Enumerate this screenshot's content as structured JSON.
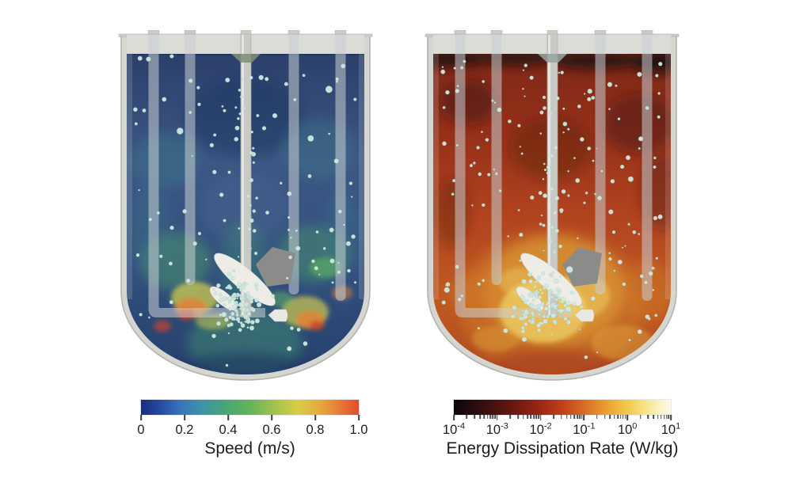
{
  "figure": {
    "background": "#ffffff",
    "tank_colors": {
      "wall": "#d6d6d1",
      "outline": "#b3b3ae",
      "rim": "#cbcbc6",
      "headspace": "#dcdcd7",
      "tube": "#c8cdd2",
      "shaft": "#c8cac6",
      "shaft_edge": "#a9aba7",
      "impeller_white": "#edece7",
      "impeller_gray": "#8b8b89",
      "sparger": "#eae8e2",
      "bubble": "#cfe9e2",
      "bubble_edge": "#84b5a8"
    },
    "panels": [
      {
        "name": "speed-panel",
        "field": "speed",
        "liquid_gradient": [
          "#2c3f6b",
          "#3d5784",
          "#33507e",
          "#24406b"
        ],
        "surface_dip": "#7f8e79",
        "surface_line": "#1d2b49",
        "blob_colors": {
          "teal": "#3a7a8a",
          "green": "#4a9a6a",
          "green2": "#3f8f74",
          "bright_green": "#62b862",
          "mid_blue": "#46648f",
          "deep": "#1b3260",
          "jet_yellow": "#d9d44c",
          "jet_orange": "#e08438",
          "jet_red": "#cc4328"
        }
      },
      {
        "name": "edr-panel",
        "field": "energy_dissipation_rate",
        "liquid_gradient": [
          "#7e2818",
          "#963019",
          "#b2431f",
          "#c05a22",
          "#ae4a1e"
        ],
        "surface_dip": "#97a3a1",
        "surface_line": "",
        "blob_colors": {
          "surface_dark": "#170b09",
          "maroon": "#431410",
          "glow_orange": "#d07c2a",
          "glow_yellow": "#e2a83a",
          "glow_bright": "#efd46a",
          "dome_red": "#a63b1d"
        }
      }
    ]
  },
  "chart_data": [
    {
      "type": "heatmap",
      "title": "Speed (m/s)",
      "scale": "linear",
      "unit": "m/s",
      "range": [
        0,
        1.0
      ],
      "ticks": [
        {
          "pos": 0,
          "label": "0"
        },
        {
          "pos": 0.2,
          "label": "0.2"
        },
        {
          "pos": 0.4,
          "label": "0.4"
        },
        {
          "pos": 0.6,
          "label": "0.6"
        },
        {
          "pos": 0.8,
          "label": "0.8"
        },
        {
          "pos": 1,
          "label": "1.0"
        }
      ],
      "colormap": [
        [
          0,
          "#1a2e7e"
        ],
        [
          0.08,
          "#24479f"
        ],
        [
          0.18,
          "#3a73ba"
        ],
        [
          0.28,
          "#3f93a8"
        ],
        [
          0.38,
          "#46a578"
        ],
        [
          0.5,
          "#65b25a"
        ],
        [
          0.62,
          "#a5c44d"
        ],
        [
          0.72,
          "#d7cd47"
        ],
        [
          0.82,
          "#e7a93d"
        ],
        [
          0.91,
          "#e87b37"
        ],
        [
          1,
          "#e04b2f"
        ]
      ]
    },
    {
      "type": "heatmap",
      "title": "Energy Dissipation Rate (W/kg)",
      "scale": "log10",
      "unit": "W/kg",
      "range": [
        0.0001,
        10
      ],
      "ticks": [
        {
          "pos": 0,
          "base": "10",
          "exp": "-4"
        },
        {
          "pos": 0.2,
          "base": "10",
          "exp": "-3"
        },
        {
          "pos": 0.4,
          "base": "10",
          "exp": "-2"
        },
        {
          "pos": 0.6,
          "base": "10",
          "exp": "-1"
        },
        {
          "pos": 0.8,
          "base": "10",
          "exp": "0"
        },
        {
          "pos": 1,
          "base": "10",
          "exp": "1"
        }
      ],
      "colormap": [
        [
          0,
          "#0d0508"
        ],
        [
          0.1,
          "#2a0c10"
        ],
        [
          0.2,
          "#4c120e"
        ],
        [
          0.3,
          "#731a10"
        ],
        [
          0.4,
          "#9c2713"
        ],
        [
          0.5,
          "#c2401b"
        ],
        [
          0.6,
          "#d96b24"
        ],
        [
          0.68,
          "#e8942c"
        ],
        [
          0.78,
          "#f0c243"
        ],
        [
          0.88,
          "#f6e383"
        ],
        [
          0.95,
          "#fbf3c6"
        ],
        [
          1,
          "#fdfae8"
        ]
      ]
    }
  ]
}
